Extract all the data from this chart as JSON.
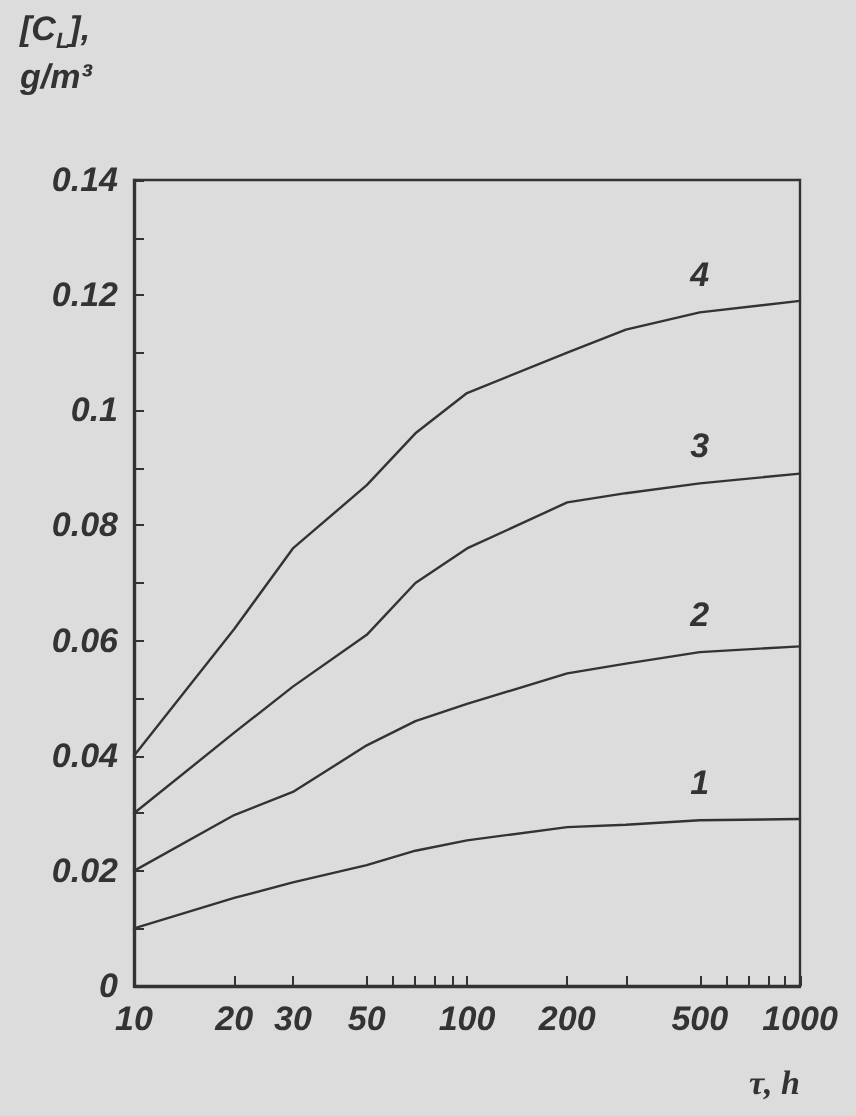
{
  "chart_data": {
    "type": "line",
    "xlabel": "τ, h",
    "ylabel": "[C$_{L}$],\ng/m³",
    "log": "x",
    "x": [
      10,
      20,
      30,
      50,
      70,
      100,
      200,
      300,
      500,
      1000
    ],
    "series": [
      {
        "name": "1",
        "color": "#333333",
        "values": [
          0.01,
          0.0153,
          0.018,
          0.021,
          0.0235,
          0.0253,
          0.0276,
          0.028,
          0.0288,
          0.029
        ]
      },
      {
        "name": "2",
        "color": "#333333",
        "values": [
          0.02,
          0.0297,
          0.0337,
          0.0418,
          0.046,
          0.049,
          0.0543,
          0.056,
          0.058,
          0.059
        ]
      },
      {
        "name": "3",
        "color": "#333333",
        "values": [
          0.03,
          0.044,
          0.052,
          0.061,
          0.07,
          0.076,
          0.084,
          0.0856,
          0.0873,
          0.089
        ]
      },
      {
        "name": "4",
        "color": "#333333",
        "values": [
          0.04,
          0.062,
          0.076,
          0.087,
          0.096,
          0.103,
          0.11,
          0.114,
          0.117,
          0.119
        ]
      }
    ],
    "xlim": [
      10,
      1000
    ],
    "xticks": [
      10,
      20,
      30,
      50,
      {
        "value": 60,
        "label": null
      },
      {
        "value": 70,
        "label": null
      },
      {
        "value": 80,
        "label": null
      },
      {
        "value": 90,
        "label": null
      },
      100,
      200,
      {
        "value": 300,
        "label": null
      },
      500,
      {
        "value": 600,
        "label": null
      },
      {
        "value": 700,
        "label": null
      },
      {
        "value": 800,
        "label": null
      },
      {
        "value": 900,
        "label": null
      },
      1000
    ],
    "ylim": [
      0,
      0.14
    ],
    "yticks": [
      0,
      {
        "value": 0.01,
        "label": null
      },
      0.02,
      {
        "value": 0.03,
        "label": null
      },
      0.04,
      {
        "value": 0.05,
        "label": null
      },
      0.06,
      {
        "value": 0.07,
        "label": null
      },
      0.08,
      {
        "value": 0.09,
        "label": null
      },
      0.1,
      {
        "value": 0.11,
        "label": null
      },
      0.12,
      {
        "value": 0.13,
        "label": null
      },
      0.14
    ],
    "grid": false,
    "legend": false,
    "marker": "none",
    "line_style": "solid"
  }
}
